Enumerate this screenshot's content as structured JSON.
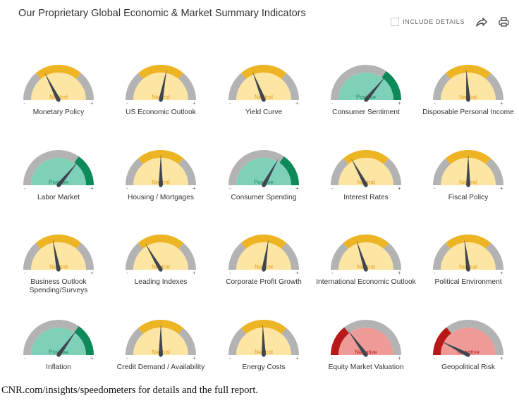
{
  "header": {
    "title": "Our Proprietary Global Economic & Market Summary Indicators",
    "include_details_label": "INCLUDE DETAILS",
    "share_icon": "share-icon",
    "print_icon": "print-icon"
  },
  "colors": {
    "neutral_fill": "#fde5a3",
    "neutral_band": "#edb424",
    "positive_fill": "#7fd0b9",
    "positive_band": "#0e8a5a",
    "negative_fill": "#ee9b98",
    "negative_band": "#b81818",
    "arc_gray": "#b3b3b3",
    "needle": "#3f4650",
    "neutral_text": "#e2a020",
    "positive_text": "#1d8a5f",
    "negative_text": "#c42020"
  },
  "gauges": [
    {
      "label": "Monetary Policy",
      "status": "Neutral",
      "level": 0.35
    },
    {
      "label": "US Economic Outlook",
      "status": "Neutral",
      "level": 0.56
    },
    {
      "label": "Yield Curve",
      "status": "Neutral",
      "level": 0.38
    },
    {
      "label": "Consumer Sentiment",
      "status": "Positive",
      "level": 0.72
    },
    {
      "label": "Disposable Personal Income",
      "status": "Neutral",
      "level": 0.48
    },
    {
      "label": "Labor Market",
      "status": "Positive",
      "level": 0.72
    },
    {
      "label": "Housing / Mortgages",
      "status": "Neutral",
      "level": 0.5
    },
    {
      "label": "Consumer Spending",
      "status": "Positive",
      "level": 0.66
    },
    {
      "label": "Interest Rates",
      "status": "Neutral",
      "level": 0.34
    },
    {
      "label": "Fiscal Policy",
      "status": "Neutral",
      "level": 0.5
    },
    {
      "label": "Business Outlook Spending/Surveys",
      "status": "Neutral",
      "level": 0.44
    },
    {
      "label": "Leading Indexes",
      "status": "Neutral",
      "level": 0.33
    },
    {
      "label": "Corporate Profit Growth",
      "status": "Neutral",
      "level": 0.55
    },
    {
      "label": "International Economic Outlook",
      "status": "Neutral",
      "level": 0.4
    },
    {
      "label": "Political Environment",
      "status": "Neutral",
      "level": 0.46
    },
    {
      "label": "Inflation",
      "status": "Positive",
      "level": 0.7
    },
    {
      "label": "Credit Demand / Availability",
      "status": "Neutral",
      "level": 0.5
    },
    {
      "label": "Energy Costs",
      "status": "Neutral",
      "level": 0.49
    },
    {
      "label": "Equity Market Valuation",
      "status": "Negative",
      "level": 0.3
    },
    {
      "label": "Geopolitical Risk",
      "status": "Negative",
      "level": 0.15
    }
  ],
  "footer": {
    "text": "CNR.com/insights/speedometers for details and the full report."
  }
}
